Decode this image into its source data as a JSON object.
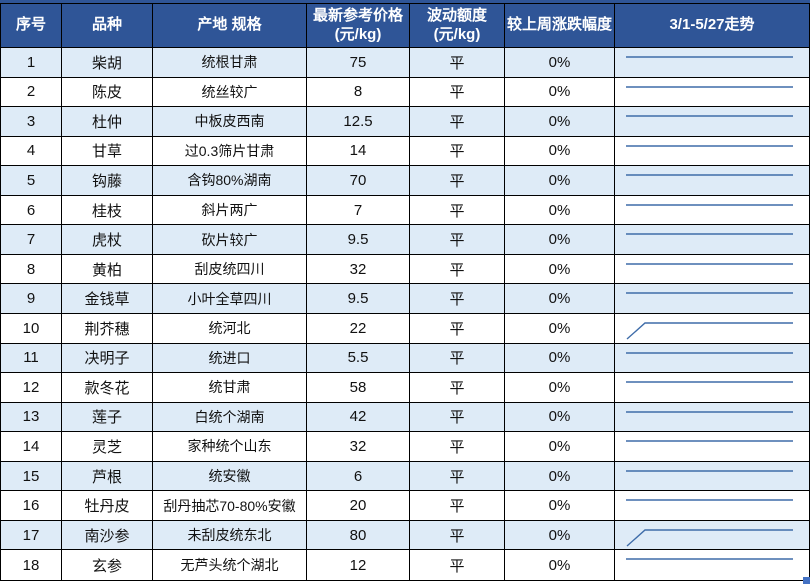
{
  "colors": {
    "header_bg": "#2F5597",
    "header_text": "#FFFFFF",
    "row_alt_bg": "#DEEBF7",
    "row_bg": "#FFFFFF",
    "border": "#000000",
    "sparkline": "#3E6CA9",
    "fill_handle": "#4472C4"
  },
  "header": {
    "columns": [
      {
        "label": "序号",
        "sub": ""
      },
      {
        "label": "品种",
        "sub": ""
      },
      {
        "label": "产地 规格",
        "sub": ""
      },
      {
        "label": "最新参考价格",
        "sub": "(元/kg)"
      },
      {
        "label": "波动额度",
        "sub": "(元/kg)"
      },
      {
        "label": "较上周涨跌幅度",
        "sub": ""
      },
      {
        "label": "3/1-5/27走势",
        "sub": ""
      }
    ]
  },
  "rows": [
    {
      "no": "1",
      "variety": "柴胡",
      "spec": "统根甘肃",
      "price": "75",
      "fluctuation": "平",
      "change": "0%",
      "trend": "flat"
    },
    {
      "no": "2",
      "variety": "陈皮",
      "spec": "统丝较广",
      "price": "8",
      "fluctuation": "平",
      "change": "0%",
      "trend": "flat"
    },
    {
      "no": "3",
      "variety": "杜仲",
      "spec": "中板皮西南",
      "price": "12.5",
      "fluctuation": "平",
      "change": "0%",
      "trend": "flat"
    },
    {
      "no": "4",
      "variety": "甘草",
      "spec": "过0.3筛片甘肃",
      "price": "14",
      "fluctuation": "平",
      "change": "0%",
      "trend": "flat"
    },
    {
      "no": "5",
      "variety": "钩藤",
      "spec": "含钩80%湖南",
      "price": "70",
      "fluctuation": "平",
      "change": "0%",
      "trend": "flat"
    },
    {
      "no": "6",
      "variety": "桂枝",
      "spec": "斜片两广",
      "price": "7",
      "fluctuation": "平",
      "change": "0%",
      "trend": "flat"
    },
    {
      "no": "7",
      "variety": "虎杖",
      "spec": "砍片较广",
      "price": "9.5",
      "fluctuation": "平",
      "change": "0%",
      "trend": "flat"
    },
    {
      "no": "8",
      "variety": "黄柏",
      "spec": "刮皮统四川",
      "price": "32",
      "fluctuation": "平",
      "change": "0%",
      "trend": "flat"
    },
    {
      "no": "9",
      "variety": "金钱草",
      "spec": "小叶全草四川",
      "price": "9.5",
      "fluctuation": "平",
      "change": "0%",
      "trend": "flat"
    },
    {
      "no": "10",
      "variety": "荆芥穗",
      "spec": "统河北",
      "price": "22",
      "fluctuation": "平",
      "change": "0%",
      "trend": "rise-flat"
    },
    {
      "no": "11",
      "variety": "决明子",
      "spec": "统进口",
      "price": "5.5",
      "fluctuation": "平",
      "change": "0%",
      "trend": "flat"
    },
    {
      "no": "12",
      "variety": "款冬花",
      "spec": "统甘肃",
      "price": "58",
      "fluctuation": "平",
      "change": "0%",
      "trend": "flat"
    },
    {
      "no": "13",
      "variety": "莲子",
      "spec": "白统个湖南",
      "price": "42",
      "fluctuation": "平",
      "change": "0%",
      "trend": "flat"
    },
    {
      "no": "14",
      "variety": "灵芝",
      "spec": "家种统个山东",
      "price": "32",
      "fluctuation": "平",
      "change": "0%",
      "trend": "flat"
    },
    {
      "no": "15",
      "variety": "芦根",
      "spec": "统安徽",
      "price": "6",
      "fluctuation": "平",
      "change": "0%",
      "trend": "flat"
    },
    {
      "no": "16",
      "variety": "牡丹皮",
      "spec": "刮丹抽芯70-80%安徽",
      "price": "20",
      "fluctuation": "平",
      "change": "0%",
      "trend": "flat"
    },
    {
      "no": "17",
      "variety": "南沙参",
      "spec": "未刮皮统东北",
      "price": "80",
      "fluctuation": "平",
      "change": "0%",
      "trend": "rise-flat"
    },
    {
      "no": "18",
      "variety": "玄参",
      "spec": "无芦头统个湖北",
      "price": "12",
      "fluctuation": "平",
      "change": "0%",
      "trend": "flat"
    }
  ]
}
